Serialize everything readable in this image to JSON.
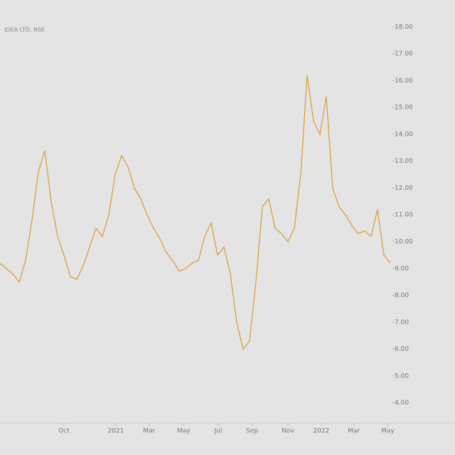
{
  "chart_data": {
    "type": "line",
    "title": "IDEA LTD, NSE",
    "series": [
      {
        "name": "IDEA",
        "color": "#d9a03c",
        "values": [
          9.2,
          9,
          8.8,
          8.5,
          9.3,
          10.8,
          12.6,
          13.4,
          11.5,
          10.2,
          9.5,
          8.7,
          8.6,
          9.1,
          9.8,
          10.5,
          10.2,
          11,
          12.5,
          13.2,
          12.8,
          12,
          11.6,
          11,
          10.5,
          10.1,
          9.6,
          9.3,
          8.9,
          9,
          9.2,
          9.3,
          10.2,
          10.7,
          9.5,
          9.8,
          8.8,
          7,
          6,
          6.3,
          8.5,
          11.3,
          11.6,
          10.5,
          10.3,
          10,
          10.5,
          12.5,
          16.2,
          14.5,
          14,
          15.4,
          12,
          11.3,
          11,
          10.6,
          10.3,
          10.4,
          10.2,
          11.2,
          9.5,
          9.2
        ]
      }
    ],
    "xlim": [
      0,
      61
    ],
    "xticks": [
      {
        "value": 10,
        "label": "Oct"
      },
      {
        "value": 18.1,
        "label": "2021"
      },
      {
        "value": 23.3,
        "label": "Mar"
      },
      {
        "value": 28.7,
        "label": "May"
      },
      {
        "value": 34.1,
        "label": "Jul"
      },
      {
        "value": 39.4,
        "label": "Sep"
      },
      {
        "value": 45,
        "label": "Nov"
      },
      {
        "value": 50.2,
        "label": "2022"
      },
      {
        "value": 55.3,
        "label": "Mar"
      },
      {
        "value": 60.6,
        "label": "May"
      }
    ],
    "ylim": [
      3.25,
      19
    ],
    "yticks": [
      {
        "value": 4,
        "label": "4.00"
      },
      {
        "value": 5,
        "label": "5.00"
      },
      {
        "value": 6,
        "label": "6.00"
      },
      {
        "value": 7,
        "label": "7.00"
      },
      {
        "value": 8,
        "label": "8.00"
      },
      {
        "value": 9,
        "label": "9.00"
      },
      {
        "value": 10,
        "label": "10.00"
      },
      {
        "value": 11,
        "label": "11.00"
      },
      {
        "value": 12,
        "label": "12.00"
      },
      {
        "value": 13,
        "label": "13.00"
      },
      {
        "value": 14,
        "label": "14.00"
      },
      {
        "value": 15,
        "label": "15.00"
      },
      {
        "value": 16,
        "label": "16.00"
      },
      {
        "value": 17,
        "label": "17.00"
      },
      {
        "value": 18,
        "label": "18.00"
      }
    ]
  }
}
